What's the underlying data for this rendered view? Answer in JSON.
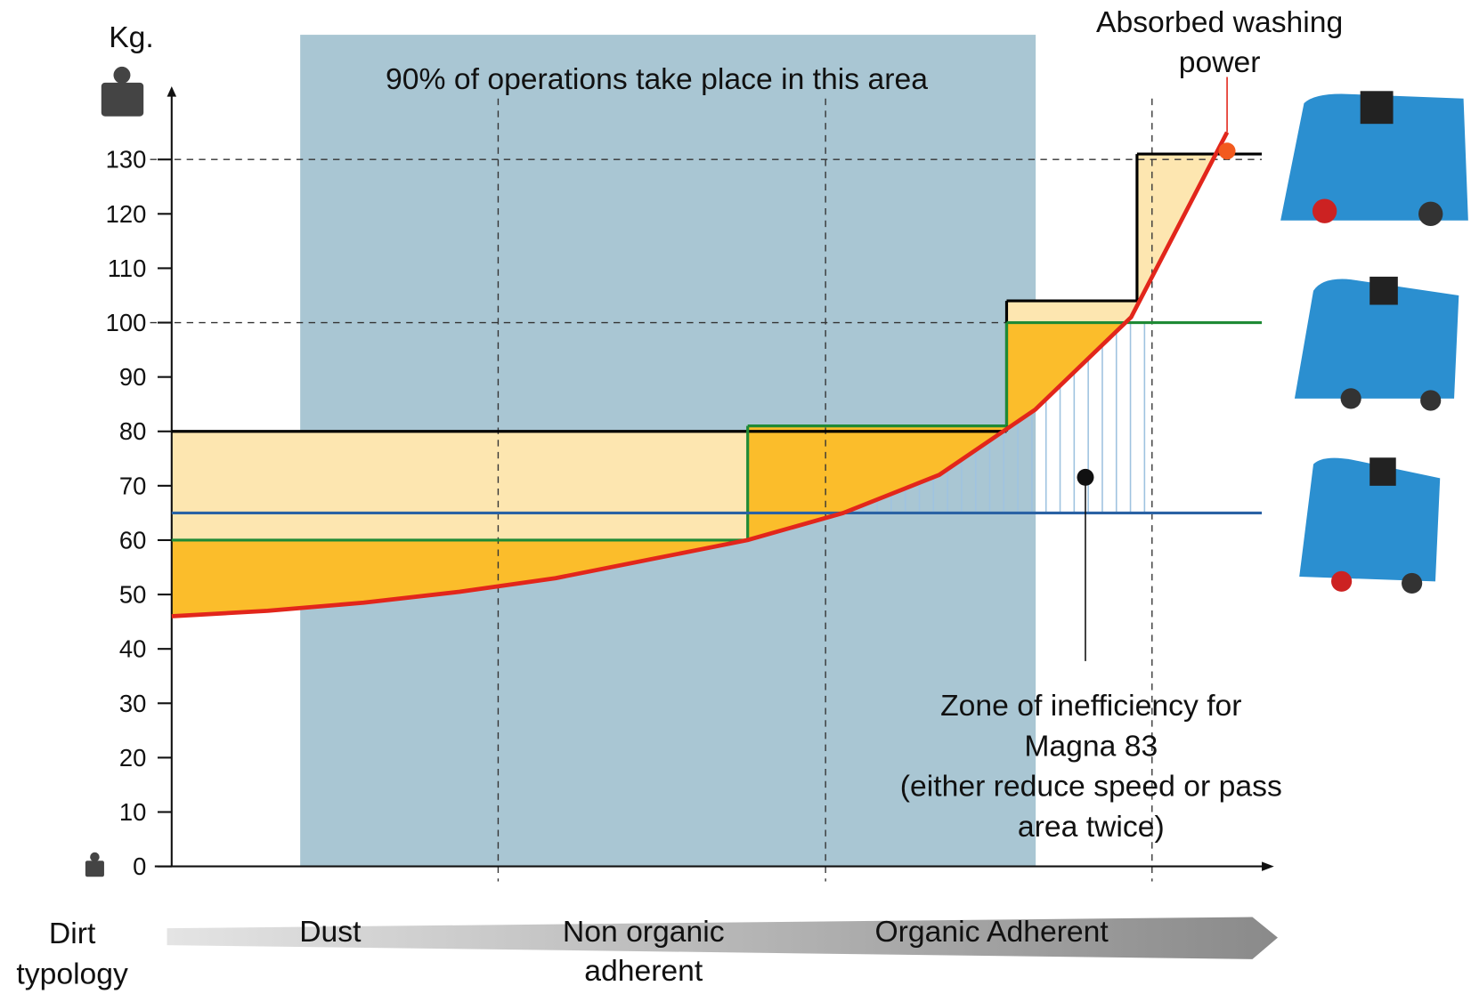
{
  "chart_data": {
    "type": "line",
    "y_label": "Kg.",
    "area_note": "90% of operations take place in this area",
    "power_note": [
      "Absorbed washing",
      "power"
    ],
    "zone_note": [
      "Zone of inefficiency for",
      "Magna 83",
      "(either reduce speed or pass",
      "area twice)"
    ],
    "x_label": [
      "Dirt",
      "typology"
    ],
    "categories": [
      [
        "Dust"
      ],
      [
        "Non organic",
        "adherent"
      ],
      [
        "Organic Adherent"
      ]
    ],
    "ylim": [
      0,
      140
    ],
    "yticks": [
      0,
      10,
      20,
      30,
      40,
      50,
      60,
      70,
      80,
      90,
      100,
      110,
      120,
      130
    ],
    "levels": [
      {
        "color": "#000000",
        "values": [
          80,
          104,
          131
        ]
      },
      {
        "color": "#1f8a35",
        "values": [
          60,
          81,
          100
        ]
      },
      {
        "color": "#2a62a4",
        "values": [
          65
        ]
      }
    ],
    "curve": {
      "color": "#e2261b",
      "values": [
        46,
        47,
        48.5,
        50.5,
        53,
        56.5,
        60,
        65,
        72,
        84,
        101,
        135
      ]
    },
    "grid": [
      100,
      130
    ]
  }
}
